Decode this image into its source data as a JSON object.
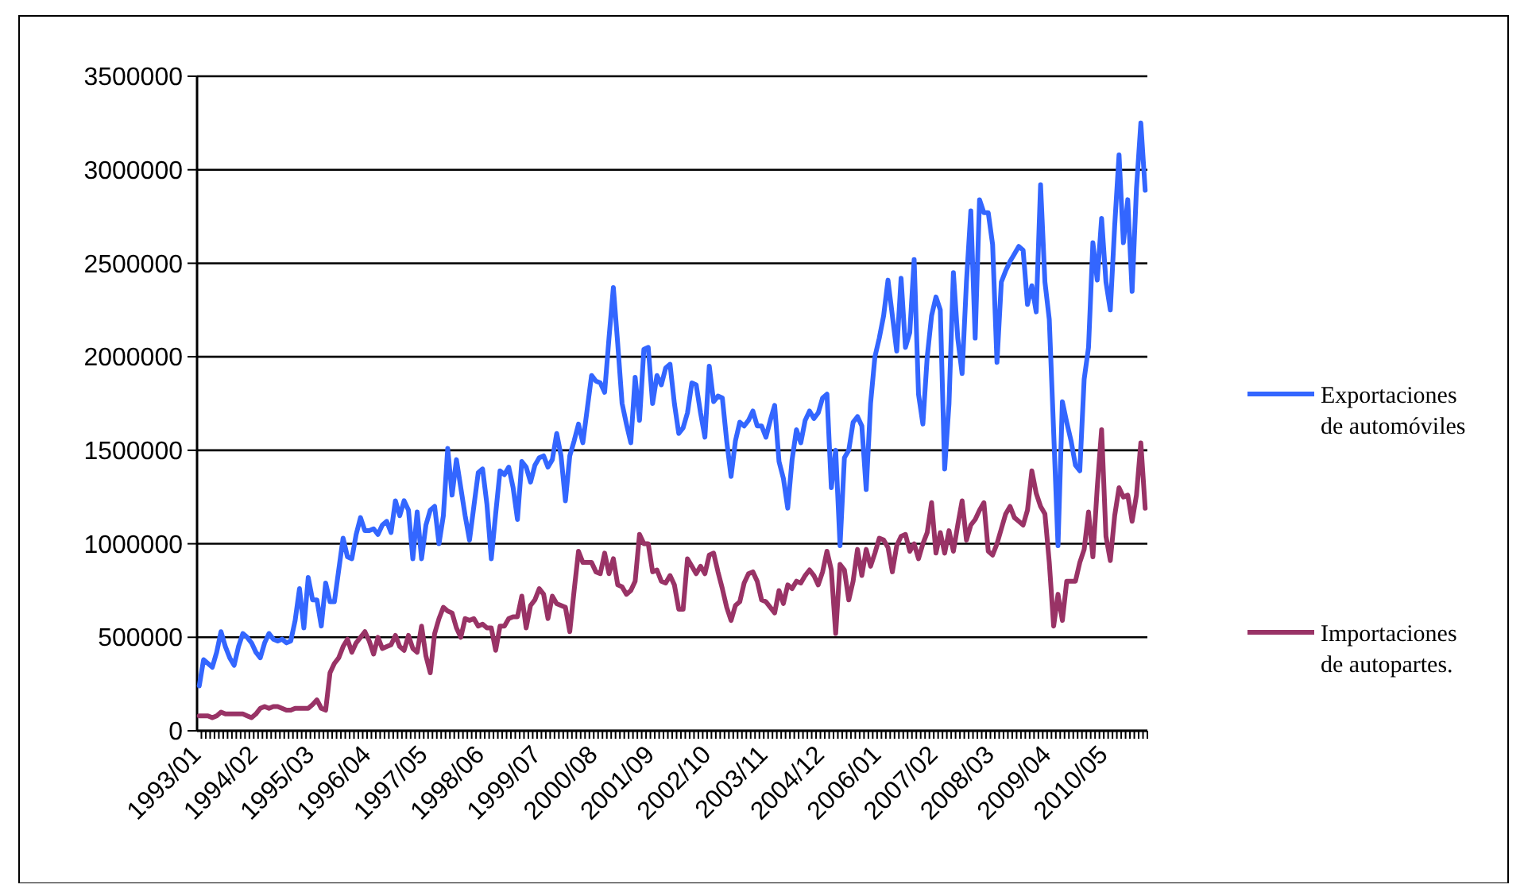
{
  "chart_data": {
    "type": "line",
    "categories": [
      "1993/01",
      null,
      null,
      null,
      null,
      null,
      null,
      null,
      null,
      null,
      null,
      null,
      null,
      "1994/02",
      null,
      null,
      null,
      null,
      null,
      null,
      null,
      null,
      null,
      null,
      null,
      null,
      "1995/03",
      null,
      null,
      null,
      null,
      null,
      null,
      null,
      null,
      null,
      null,
      null,
      null,
      "1996/04",
      null,
      null,
      null,
      null,
      null,
      null,
      null,
      null,
      null,
      null,
      null,
      null,
      "1997/05",
      null,
      null,
      null,
      null,
      null,
      null,
      null,
      null,
      null,
      null,
      null,
      null,
      "1998/06",
      null,
      null,
      null,
      null,
      null,
      null,
      null,
      null,
      null,
      null,
      null,
      null,
      "1999/07",
      null,
      null,
      null,
      null,
      null,
      null,
      null,
      null,
      null,
      null,
      null,
      null,
      "2000/08",
      null,
      null,
      null,
      null,
      null,
      null,
      null,
      null,
      null,
      null,
      null,
      null,
      "2001/09",
      null,
      null,
      null,
      null,
      null,
      null,
      null,
      null,
      null,
      null,
      null,
      null,
      "2002/10",
      null,
      null,
      null,
      null,
      null,
      null,
      null,
      null,
      null,
      null,
      null,
      null,
      "2003/11",
      null,
      null,
      null,
      null,
      null,
      null,
      null,
      null,
      null,
      null,
      null,
      null,
      "2004/12",
      null,
      null,
      null,
      null,
      null,
      null,
      null,
      null,
      null,
      null,
      null,
      null,
      "2006/01",
      null,
      null,
      null,
      null,
      null,
      null,
      null,
      null,
      null,
      null,
      null,
      null,
      "2007/02",
      null,
      null,
      null,
      null,
      null,
      null,
      null,
      null,
      null,
      null,
      null,
      null,
      "2008/03",
      null,
      null,
      null,
      null,
      null,
      null,
      null,
      null,
      null,
      null,
      null,
      null,
      "2009/04",
      null,
      null,
      null,
      null,
      null,
      null,
      null,
      null,
      null,
      null,
      null,
      null,
      "2010/05",
      null,
      null,
      null,
      null,
      null,
      null,
      null,
      null,
      null
    ],
    "series": [
      {
        "name": "Exportaciones de automóviles",
        "color": "#3366ff",
        "values": [
          240000,
          380000,
          360000,
          340000,
          420000,
          530000,
          450000,
          390000,
          350000,
          450000,
          520000,
          500000,
          470000,
          420000,
          390000,
          470000,
          520000,
          490000,
          480000,
          490000,
          470000,
          480000,
          590000,
          760000,
          550000,
          820000,
          700000,
          700000,
          560000,
          790000,
          690000,
          690000,
          860000,
          1030000,
          930000,
          920000,
          1050000,
          1140000,
          1070000,
          1070000,
          1080000,
          1050000,
          1100000,
          1120000,
          1060000,
          1230000,
          1150000,
          1230000,
          1180000,
          920000,
          1170000,
          920000,
          1100000,
          1180000,
          1200000,
          1000000,
          1150000,
          1510000,
          1260000,
          1450000,
          1300000,
          1150000,
          1020000,
          1200000,
          1380000,
          1400000,
          1210000,
          920000,
          1160000,
          1390000,
          1370000,
          1410000,
          1300000,
          1130000,
          1440000,
          1410000,
          1330000,
          1420000,
          1460000,
          1470000,
          1410000,
          1450000,
          1590000,
          1470000,
          1230000,
          1470000,
          1550000,
          1640000,
          1540000,
          1720000,
          1900000,
          1870000,
          1860000,
          1810000,
          2100000,
          2370000,
          2070000,
          1750000,
          1640000,
          1540000,
          1890000,
          1660000,
          2040000,
          2050000,
          1750000,
          1900000,
          1850000,
          1940000,
          1960000,
          1750000,
          1590000,
          1620000,
          1700000,
          1860000,
          1850000,
          1700000,
          1570000,
          1950000,
          1760000,
          1790000,
          1780000,
          1550000,
          1360000,
          1550000,
          1650000,
          1630000,
          1660000,
          1710000,
          1630000,
          1630000,
          1570000,
          1660000,
          1740000,
          1440000,
          1350000,
          1190000,
          1450000,
          1610000,
          1540000,
          1660000,
          1710000,
          1670000,
          1700000,
          1780000,
          1800000,
          1300000,
          1500000,
          990000,
          1460000,
          1500000,
          1650000,
          1680000,
          1630000,
          1290000,
          1750000,
          2000000,
          2100000,
          2220000,
          2410000,
          2220000,
          2030000,
          2420000,
          2050000,
          2130000,
          2520000,
          1800000,
          1640000,
          2000000,
          2220000,
          2320000,
          2250000,
          1400000,
          1750000,
          2450000,
          2100000,
          1910000,
          2400000,
          2780000,
          2100000,
          2840000,
          2770000,
          2770000,
          2600000,
          1970000,
          2400000,
          2460000,
          2510000,
          2550000,
          2590000,
          2570000,
          2280000,
          2380000,
          2240000,
          2920000,
          2400000,
          2200000,
          1600000,
          990000,
          1760000,
          1650000,
          1550000,
          1420000,
          1390000,
          1880000,
          2050000,
          2610000,
          2410000,
          2740000,
          2400000,
          2250000,
          2700000,
          3080000,
          2610000,
          2840000,
          2350000,
          2900000,
          3250000,
          2890000
        ]
      },
      {
        "name": "Importaciones de autopartes.",
        "color": "#993366",
        "values": [
          80000,
          80000,
          80000,
          70000,
          80000,
          100000,
          90000,
          90000,
          90000,
          90000,
          90000,
          80000,
          70000,
          90000,
          120000,
          130000,
          120000,
          130000,
          130000,
          120000,
          110000,
          110000,
          120000,
          120000,
          120000,
          120000,
          140000,
          165000,
          120000,
          110000,
          310000,
          360000,
          390000,
          450000,
          490000,
          420000,
          470000,
          500000,
          530000,
          480000,
          410000,
          500000,
          440000,
          450000,
          460000,
          510000,
          450000,
          430000,
          510000,
          440000,
          420000,
          560000,
          400000,
          310000,
          520000,
          600000,
          660000,
          640000,
          630000,
          550000,
          500000,
          600000,
          590000,
          600000,
          560000,
          570000,
          550000,
          550000,
          430000,
          560000,
          560000,
          600000,
          610000,
          610000,
          720000,
          550000,
          670000,
          700000,
          760000,
          730000,
          600000,
          720000,
          680000,
          670000,
          660000,
          530000,
          750000,
          960000,
          900000,
          900000,
          900000,
          850000,
          840000,
          950000,
          840000,
          920000,
          780000,
          770000,
          730000,
          750000,
          800000,
          1050000,
          1000000,
          1000000,
          850000,
          860000,
          800000,
          790000,
          830000,
          780000,
          650000,
          650000,
          920000,
          880000,
          840000,
          880000,
          840000,
          940000,
          950000,
          850000,
          760000,
          660000,
          590000,
          670000,
          690000,
          790000,
          840000,
          850000,
          800000,
          700000,
          690000,
          660000,
          630000,
          750000,
          680000,
          780000,
          760000,
          800000,
          790000,
          830000,
          860000,
          830000,
          780000,
          850000,
          960000,
          860000,
          520000,
          890000,
          860000,
          700000,
          800000,
          970000,
          830000,
          970000,
          880000,
          950000,
          1030000,
          1020000,
          980000,
          850000,
          990000,
          1040000,
          1050000,
          960000,
          1000000,
          920000,
          1000000,
          1060000,
          1220000,
          950000,
          1060000,
          950000,
          1070000,
          960000,
          1100000,
          1230000,
          1020000,
          1100000,
          1130000,
          1180000,
          1220000,
          960000,
          940000,
          1000000,
          1080000,
          1160000,
          1200000,
          1140000,
          1120000,
          1100000,
          1180000,
          1390000,
          1270000,
          1200000,
          1160000,
          900000,
          560000,
          730000,
          590000,
          800000,
          800000,
          800000,
          900000,
          970000,
          1170000,
          930000,
          1300000,
          1610000,
          1040000,
          910000,
          1150000,
          1300000,
          1250000,
          1260000,
          1120000,
          1260000,
          1540000,
          1190000
        ]
      }
    ],
    "ylim": [
      0,
      3500000
    ],
    "yticks": [
      0,
      500000,
      1000000,
      1500000,
      2000000,
      2500000,
      3000000,
      3500000
    ],
    "grid": "y",
    "legend": "right",
    "marker": "none",
    "line_style": "solid"
  }
}
